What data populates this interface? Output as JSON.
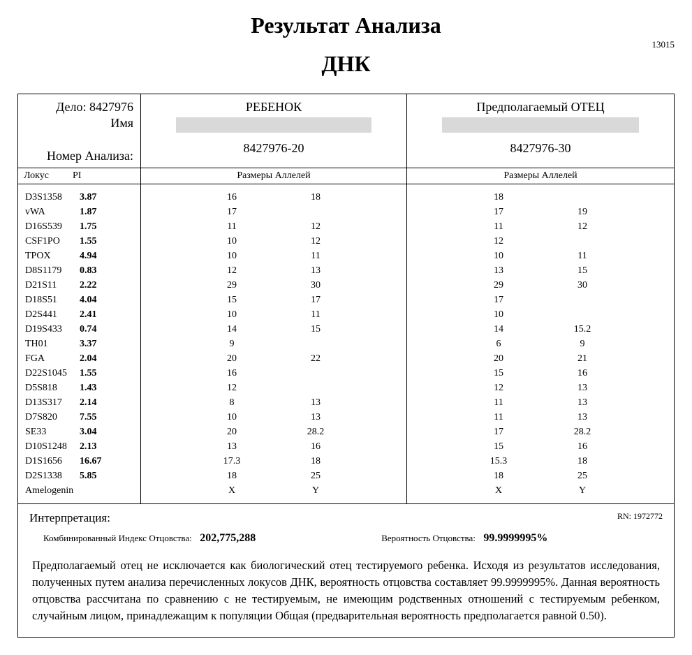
{
  "title": {
    "main": "Результат Анализа",
    "sub": "ДНК",
    "doc_number": "13015"
  },
  "meta": {
    "case_label": "Дело:",
    "case_value": "8427976",
    "name_label": "Имя",
    "analysis_label": "Номер Анализа:"
  },
  "columns": {
    "child": {
      "role": "РЕБЕНОК",
      "analysis": "8427976-20"
    },
    "father": {
      "role": "Предполагаемый ОТЕЦ",
      "analysis": "8427976-30"
    }
  },
  "subheaders": {
    "locus": "Локус",
    "pi": "PI",
    "alleles": "Размеры Аллелей"
  },
  "rows": [
    {
      "locus": "D3S1358",
      "pi": "3.87",
      "c1": "16",
      "c2": "18",
      "f1": "18",
      "f2": ""
    },
    {
      "locus": "vWA",
      "pi": "1.87",
      "c1": "17",
      "c2": "",
      "f1": "17",
      "f2": "19"
    },
    {
      "locus": "D16S539",
      "pi": "1.75",
      "c1": "11",
      "c2": "12",
      "f1": "11",
      "f2": "12"
    },
    {
      "locus": "CSF1PO",
      "pi": "1.55",
      "c1": "10",
      "c2": "12",
      "f1": "12",
      "f2": ""
    },
    {
      "locus": "TPOX",
      "pi": "4.94",
      "c1": "10",
      "c2": "11",
      "f1": "10",
      "f2": "11"
    },
    {
      "locus": "D8S1179",
      "pi": "0.83",
      "c1": "12",
      "c2": "13",
      "f1": "13",
      "f2": "15"
    },
    {
      "locus": "D21S11",
      "pi": "2.22",
      "c1": "29",
      "c2": "30",
      "f1": "29",
      "f2": "30"
    },
    {
      "locus": "D18S51",
      "pi": "4.04",
      "c1": "15",
      "c2": "17",
      "f1": "17",
      "f2": ""
    },
    {
      "locus": "D2S441",
      "pi": "2.41",
      "c1": "10",
      "c2": "11",
      "f1": "10",
      "f2": ""
    },
    {
      "locus": "D19S433",
      "pi": "0.74",
      "c1": "14",
      "c2": "15",
      "f1": "14",
      "f2": "15.2"
    },
    {
      "locus": "TH01",
      "pi": "3.37",
      "c1": "9",
      "c2": "",
      "f1": "6",
      "f2": "9"
    },
    {
      "locus": "FGA",
      "pi": "2.04",
      "c1": "20",
      "c2": "22",
      "f1": "20",
      "f2": "21"
    },
    {
      "locus": "D22S1045",
      "pi": "1.55",
      "c1": "16",
      "c2": "",
      "f1": "15",
      "f2": "16"
    },
    {
      "locus": "D5S818",
      "pi": "1.43",
      "c1": "12",
      "c2": "",
      "f1": "12",
      "f2": "13"
    },
    {
      "locus": "D13S317",
      "pi": "2.14",
      "c1": "8",
      "c2": "13",
      "f1": "11",
      "f2": "13"
    },
    {
      "locus": "D7S820",
      "pi": "7.55",
      "c1": "10",
      "c2": "13",
      "f1": "11",
      "f2": "13"
    },
    {
      "locus": "SE33",
      "pi": "3.04",
      "c1": "20",
      "c2": "28.2",
      "f1": "17",
      "f2": "28.2"
    },
    {
      "locus": "D10S1248",
      "pi": "2.13",
      "c1": "13",
      "c2": "16",
      "f1": "15",
      "f2": "16"
    },
    {
      "locus": "D1S1656",
      "pi": "16.67",
      "c1": "17.3",
      "c2": "18",
      "f1": "15.3",
      "f2": "18"
    },
    {
      "locus": "D2S1338",
      "pi": "5.85",
      "c1": "18",
      "c2": "25",
      "f1": "18",
      "f2": "25"
    },
    {
      "locus": "Amelogenin",
      "pi": "",
      "c1": "X",
      "c2": "Y",
      "f1": "X",
      "f2": "Y"
    }
  ],
  "interpretation": {
    "label": "Интерпретация:",
    "rn": "RN: 1972772",
    "cpi_label": "Комбинированный Индекс Отцовства:",
    "cpi_value": "202,775,288",
    "prob_label": "Вероятность Отцовства:",
    "prob_value": "99.9999995%",
    "text": "Предполагаемый отец не исключается как биологический отец тестируемого ребенка.  Исходя из результатов исследования, полученных путем анализа перечисленных локусов ДНК, вероятность отцовства составляет 99.9999995%.   Данная вероятность отцовства рассчитана по сравнению с не тестируемым, не имеющим родственных отношений с тестируемым ребенком, случайным лицом, принадлежащим к популяции Общая (предварительная вероятность предполагается равной 0.50)."
  }
}
